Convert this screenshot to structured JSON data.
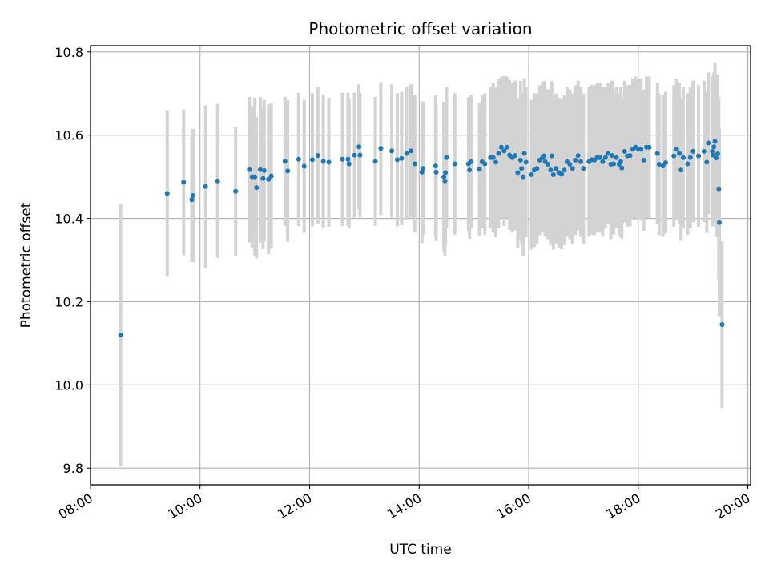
{
  "chart_data": {
    "type": "scatter",
    "title": "Photometric offset variation",
    "xlabel": "UTC time",
    "ylabel": "Photometric offset",
    "xlim": [
      8.0,
      20.05
    ],
    "ylim": [
      9.76,
      10.815
    ],
    "x_ticks": [
      {
        "value": 8,
        "label": "08:00"
      },
      {
        "value": 10,
        "label": "10:00"
      },
      {
        "value": 12,
        "label": "12:00"
      },
      {
        "value": 14,
        "label": "14:00"
      },
      {
        "value": 16,
        "label": "16:00"
      },
      {
        "value": 18,
        "label": "18:00"
      },
      {
        "value": 20,
        "label": "20:00"
      }
    ],
    "y_ticks": [
      {
        "value": 9.8,
        "label": "9.8"
      },
      {
        "value": 10.0,
        "label": "10.0"
      },
      {
        "value": 10.2,
        "label": "10.2"
      },
      {
        "value": 10.4,
        "label": "10.4"
      },
      {
        "value": 10.6,
        "label": "10.6"
      },
      {
        "value": 10.8,
        "label": "10.8"
      }
    ],
    "grid": true,
    "marker_color": "#1f77b4",
    "errorbar_color": "#d3d3d3",
    "x_format": "decimal UTC hours",
    "points": [
      [
        8.55,
        10.12,
        0.315
      ],
      [
        9.4,
        10.46,
        0.2
      ],
      [
        9.7,
        10.487,
        0.175
      ],
      [
        9.85,
        10.445,
        0.15
      ],
      [
        9.87,
        10.455,
        0.16
      ],
      [
        10.1,
        10.477,
        0.195
      ],
      [
        10.32,
        10.49,
        0.185
      ],
      [
        10.65,
        10.465,
        0.155
      ],
      [
        10.9,
        10.517,
        0.175
      ],
      [
        10.95,
        10.5,
        0.17
      ],
      [
        11.0,
        10.5,
        0.19
      ],
      [
        11.03,
        10.474,
        0.17
      ],
      [
        11.1,
        10.517,
        0.175
      ],
      [
        11.15,
        10.496,
        0.17
      ],
      [
        11.17,
        10.515,
        0.17
      ],
      [
        11.25,
        10.494,
        0.18
      ],
      [
        11.3,
        10.502,
        0.175
      ],
      [
        11.55,
        10.537,
        0.155
      ],
      [
        11.6,
        10.514,
        0.17
      ],
      [
        11.8,
        10.542,
        0.16
      ],
      [
        11.9,
        10.525,
        0.16
      ],
      [
        12.05,
        10.541,
        0.16
      ],
      [
        12.15,
        10.551,
        0.165
      ],
      [
        12.25,
        10.537,
        0.16
      ],
      [
        12.35,
        10.535,
        0.155
      ],
      [
        12.6,
        10.542,
        0.16
      ],
      [
        12.7,
        10.542,
        0.16
      ],
      [
        12.72,
        10.531,
        0.155
      ],
      [
        12.82,
        10.552,
        0.15
      ],
      [
        12.9,
        10.572,
        0.15
      ],
      [
        12.92,
        10.552,
        0.15
      ],
      [
        13.2,
        10.537,
        0.155
      ],
      [
        13.3,
        10.568,
        0.16
      ],
      [
        13.5,
        10.562,
        0.16
      ],
      [
        13.6,
        10.541,
        0.16
      ],
      [
        13.68,
        10.544,
        0.16
      ],
      [
        13.77,
        10.556,
        0.16
      ],
      [
        13.85,
        10.562,
        0.16
      ],
      [
        13.92,
        10.531,
        0.165
      ],
      [
        14.05,
        10.511,
        0.17
      ],
      [
        14.07,
        10.52,
        0.16
      ],
      [
        14.3,
        10.526,
        0.17
      ],
      [
        14.31,
        10.511,
        0.165
      ],
      [
        14.45,
        10.5,
        0.18
      ],
      [
        14.47,
        10.49,
        0.18
      ],
      [
        14.48,
        10.51,
        0.17
      ],
      [
        14.5,
        10.546,
        0.17
      ],
      [
        14.65,
        10.531,
        0.17
      ],
      [
        14.9,
        10.531,
        0.16
      ],
      [
        14.92,
        10.516,
        0.165
      ],
      [
        14.95,
        10.536,
        0.16
      ],
      [
        15.1,
        10.518,
        0.16
      ],
      [
        15.15,
        10.536,
        0.16
      ],
      [
        15.2,
        10.531,
        0.17
      ],
      [
        15.3,
        10.546,
        0.17
      ],
      [
        15.35,
        10.546,
        0.18
      ],
      [
        15.4,
        10.535,
        0.18
      ],
      [
        15.45,
        10.556,
        0.18
      ],
      [
        15.5,
        10.571,
        0.17
      ],
      [
        15.55,
        10.562,
        0.18
      ],
      [
        15.6,
        10.571,
        0.17
      ],
      [
        15.65,
        10.552,
        0.18
      ],
      [
        15.7,
        10.546,
        0.18
      ],
      [
        15.75,
        10.551,
        0.18
      ],
      [
        15.8,
        10.51,
        0.18
      ],
      [
        15.85,
        10.54,
        0.19
      ],
      [
        15.87,
        10.52,
        0.18
      ],
      [
        15.9,
        10.5,
        0.19
      ],
      [
        15.92,
        10.556,
        0.18
      ],
      [
        15.95,
        10.535,
        0.18
      ],
      [
        16.05,
        10.505,
        0.18
      ],
      [
        16.1,
        10.516,
        0.185
      ],
      [
        16.15,
        10.52,
        0.18
      ],
      [
        16.2,
        10.54,
        0.18
      ],
      [
        16.25,
        10.546,
        0.18
      ],
      [
        16.28,
        10.55,
        0.18
      ],
      [
        16.3,
        10.536,
        0.18
      ],
      [
        16.35,
        10.53,
        0.18
      ],
      [
        16.4,
        10.516,
        0.18
      ],
      [
        16.42,
        10.55,
        0.18
      ],
      [
        16.45,
        10.505,
        0.18
      ],
      [
        16.5,
        10.52,
        0.18
      ],
      [
        16.55,
        10.51,
        0.18
      ],
      [
        16.6,
        10.506,
        0.18
      ],
      [
        16.65,
        10.516,
        0.18
      ],
      [
        16.7,
        10.536,
        0.18
      ],
      [
        16.75,
        10.53,
        0.18
      ],
      [
        16.8,
        10.52,
        0.18
      ],
      [
        16.85,
        10.54,
        0.18
      ],
      [
        16.9,
        10.551,
        0.18
      ],
      [
        16.95,
        10.536,
        0.18
      ],
      [
        17.0,
        10.52,
        0.18
      ],
      [
        17.1,
        10.536,
        0.18
      ],
      [
        17.15,
        10.541,
        0.18
      ],
      [
        17.2,
        10.54,
        0.18
      ],
      [
        17.25,
        10.546,
        0.18
      ],
      [
        17.3,
        10.546,
        0.18
      ],
      [
        17.35,
        10.536,
        0.18
      ],
      [
        17.4,
        10.546,
        0.17
      ],
      [
        17.45,
        10.556,
        0.17
      ],
      [
        17.5,
        10.53,
        0.18
      ],
      [
        17.52,
        10.551,
        0.18
      ],
      [
        17.55,
        10.531,
        0.17
      ],
      [
        17.6,
        10.546,
        0.17
      ],
      [
        17.65,
        10.53,
        0.17
      ],
      [
        17.68,
        10.536,
        0.18
      ],
      [
        17.7,
        10.521,
        0.17
      ],
      [
        17.75,
        10.561,
        0.17
      ],
      [
        17.8,
        10.55,
        0.17
      ],
      [
        17.85,
        10.551,
        0.17
      ],
      [
        17.9,
        10.566,
        0.17
      ],
      [
        17.95,
        10.571,
        0.17
      ],
      [
        18.0,
        10.566,
        0.17
      ],
      [
        18.05,
        10.566,
        0.17
      ],
      [
        18.1,
        10.54,
        0.17
      ],
      [
        18.15,
        10.571,
        0.17
      ],
      [
        18.2,
        10.571,
        0.17
      ],
      [
        18.35,
        10.556,
        0.17
      ],
      [
        18.38,
        10.53,
        0.17
      ],
      [
        18.45,
        10.526,
        0.17
      ],
      [
        18.5,
        10.534,
        0.17
      ],
      [
        18.65,
        10.55,
        0.17
      ],
      [
        18.7,
        10.566,
        0.17
      ],
      [
        18.75,
        10.556,
        0.17
      ],
      [
        18.78,
        10.516,
        0.17
      ],
      [
        18.82,
        10.546,
        0.17
      ],
      [
        18.9,
        10.531,
        0.17
      ],
      [
        18.95,
        10.546,
        0.17
      ],
      [
        19.0,
        10.561,
        0.17
      ],
      [
        19.1,
        10.55,
        0.17
      ],
      [
        19.2,
        10.561,
        0.17
      ],
      [
        19.25,
        10.535,
        0.17
      ],
      [
        19.28,
        10.581,
        0.17
      ],
      [
        19.35,
        10.561,
        0.18
      ],
      [
        19.36,
        10.552,
        0.17
      ],
      [
        19.38,
        10.572,
        0.18
      ],
      [
        19.4,
        10.585,
        0.19
      ],
      [
        19.42,
        10.545,
        0.19
      ],
      [
        19.45,
        10.555,
        0.19
      ],
      [
        19.47,
        10.471,
        0.22
      ],
      [
        19.48,
        10.39,
        0.225
      ],
      [
        19.53,
        10.145,
        0.2
      ]
    ]
  }
}
